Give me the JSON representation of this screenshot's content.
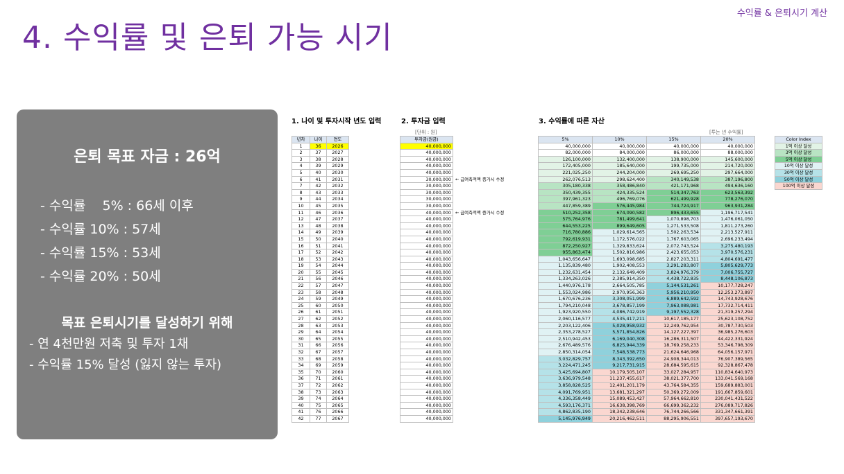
{
  "header": {
    "tag": "수익률 & 은퇴시기 계산",
    "title": "4. 수익률 및 은퇴 가능 시기"
  },
  "summary": {
    "goal": "은퇴 목표 자금 : 26억",
    "rates": [
      "- 수익률    5% : 66세 이후",
      "- 수익률 10% : 57세",
      "- 수익률 15% : 53세",
      "- 수익률 20% : 50세"
    ],
    "achieve_title": "목표 은퇴시기를 달성하기 위해",
    "steps": [
      "- 연 4천만원 저축 및 투자 1채",
      "- 수익률 15% 달성 (잃지 않는 투자)"
    ]
  },
  "sections": {
    "s1": "1. 나이 및 투자시작 년도 입력",
    "s2": "2. 투자금 입력",
    "s3": "3. 수익률에 따른 자산"
  },
  "units": {
    "invest": "[단위 : 원]",
    "returns": "[투는 년 수익률]"
  },
  "notes": [
    "← 급여축적액 증가시 수정",
    "← 급여축적액 증가시 수정"
  ],
  "colors": {
    "highlight": "#ffff00",
    "lv1": "#e2f3e6",
    "lv3": "#b8e4c3",
    "lv5": "#7fcf95",
    "lv10": "#e0f2f4",
    "lv30": "#b5e2e8",
    "lv50": "#8fd1dc",
    "lv100": "#fad7d0"
  },
  "table1": {
    "headers": [
      "년차",
      "나이",
      "연도"
    ],
    "rows": [
      [
        "1",
        "36",
        "2026"
      ],
      [
        "2",
        "37",
        "2027"
      ],
      [
        "3",
        "38",
        "2028"
      ],
      [
        "4",
        "39",
        "2029"
      ],
      [
        "5",
        "40",
        "2030"
      ],
      [
        "6",
        "41",
        "2031"
      ],
      [
        "7",
        "42",
        "2032"
      ],
      [
        "8",
        "43",
        "2033"
      ],
      [
        "9",
        "44",
        "2034"
      ],
      [
        "10",
        "45",
        "2035"
      ],
      [
        "11",
        "46",
        "2036"
      ],
      [
        "12",
        "47",
        "2037"
      ],
      [
        "13",
        "48",
        "2038"
      ],
      [
        "14",
        "49",
        "2039"
      ],
      [
        "15",
        "50",
        "2040"
      ],
      [
        "16",
        "51",
        "2041"
      ],
      [
        "17",
        "52",
        "2042"
      ],
      [
        "18",
        "53",
        "2043"
      ],
      [
        "19",
        "54",
        "2044"
      ],
      [
        "20",
        "55",
        "2045"
      ],
      [
        "21",
        "56",
        "2046"
      ],
      [
        "22",
        "57",
        "2047"
      ],
      [
        "23",
        "58",
        "2048"
      ],
      [
        "24",
        "59",
        "2049"
      ],
      [
        "25",
        "60",
        "2050"
      ],
      [
        "26",
        "61",
        "2051"
      ],
      [
        "27",
        "62",
        "2052"
      ],
      [
        "28",
        "63",
        "2053"
      ],
      [
        "29",
        "64",
        "2054"
      ],
      [
        "30",
        "65",
        "2055"
      ],
      [
        "31",
        "66",
        "2056"
      ],
      [
        "32",
        "67",
        "2057"
      ],
      [
        "33",
        "68",
        "2058"
      ],
      [
        "34",
        "69",
        "2059"
      ],
      [
        "35",
        "70",
        "2060"
      ],
      [
        "36",
        "71",
        "2061"
      ],
      [
        "37",
        "72",
        "2062"
      ],
      [
        "38",
        "73",
        "2063"
      ],
      [
        "39",
        "74",
        "2064"
      ],
      [
        "40",
        "75",
        "2065"
      ],
      [
        "41",
        "76",
        "2066"
      ],
      [
        "42",
        "77",
        "2067"
      ]
    ]
  },
  "table2": {
    "header": "투자금(원금)",
    "rows": [
      "40,000,000",
      "40,000,000",
      "40,000,000",
      "40,000,000",
      "40,000,000",
      "30,000,000",
      "30,000,000",
      "30,000,000",
      "30,000,000",
      "30,000,000",
      "40,000,000",
      "40,000,000",
      "40,000,000",
      "40,000,000",
      "40,000,000",
      "40,000,000",
      "40,000,000",
      "40,000,000",
      "40,000,000",
      "40,000,000",
      "40,000,000",
      "40,000,000",
      "40,000,000",
      "40,000,000",
      "40,000,000",
      "40,000,000",
      "40,000,000",
      "40,000,000",
      "40,000,000",
      "40,000,000",
      "40,000,000",
      "40,000,000",
      "40,000,000",
      "40,000,000",
      "40,000,000",
      "40,000,000",
      "40,000,000",
      "40,000,000",
      "40,000,000",
      "40,000,000",
      "40,000,000",
      "40,000,000"
    ]
  },
  "table3": {
    "headers": [
      "5%",
      "10%",
      "15%",
      "20%"
    ],
    "rows": [
      [
        "40,000,000",
        "40,000,000",
        "40,000,000",
        "40,000,000"
      ],
      [
        "82,000,000",
        "84,000,000",
        "86,000,000",
        "88,000,000"
      ],
      [
        "126,100,000",
        "132,400,000",
        "138,900,000",
        "145,600,000"
      ],
      [
        "172,405,000",
        "185,640,000",
        "199,735,000",
        "214,720,000"
      ],
      [
        "221,025,250",
        "244,204,000",
        "269,695,250",
        "297,664,000"
      ],
      [
        "262,076,513",
        "298,624,400",
        "340,149,538",
        "387,196,800"
      ],
      [
        "305,180,338",
        "358,486,840",
        "421,171,968",
        "494,636,160"
      ],
      [
        "350,439,355",
        "424,335,524",
        "514,347,763",
        "623,563,392"
      ],
      [
        "397,961,323",
        "496,769,076",
        "621,499,928",
        "778,276,070"
      ],
      [
        "447,859,389",
        "576,445,984",
        "744,724,917",
        "963,931,284"
      ],
      [
        "510,252,358",
        "674,090,582",
        "896,433,655",
        "1,196,717,541"
      ],
      [
        "575,764,976",
        "781,499,641",
        "1,070,898,703",
        "1,476,061,050"
      ],
      [
        "644,553,225",
        "899,649,605",
        "1,271,533,508",
        "1,811,273,260"
      ],
      [
        "716,780,886",
        "1,029,614,565",
        "1,502,263,534",
        "2,213,527,911"
      ],
      [
        "792,619,931",
        "1,172,576,022",
        "1,767,603,065",
        "2,696,233,494"
      ],
      [
        "872,250,927",
        "1,329,833,624",
        "2,072,743,524",
        "3,275,480,193"
      ],
      [
        "955,863,474",
        "1,502,816,986",
        "2,423,655,053",
        "3,970,576,231"
      ],
      [
        "1,043,656,647",
        "1,693,098,685",
        "2,827,203,311",
        "4,804,691,477"
      ],
      [
        "1,135,839,480",
        "1,902,408,553",
        "3,291,283,807",
        "5,805,629,773"
      ],
      [
        "1,232,631,454",
        "2,132,649,409",
        "3,824,976,379",
        "7,006,755,727"
      ],
      [
        "1,334,263,026",
        "2,385,914,350",
        "4,438,722,835",
        "8,448,106,873"
      ],
      [
        "1,440,976,178",
        "2,664,505,785",
        "5,144,531,261",
        "10,177,728,247"
      ],
      [
        "1,553,024,986",
        "2,970,956,363",
        "5,956,210,950",
        "12,253,273,897"
      ],
      [
        "1,670,676,236",
        "3,308,051,999",
        "6,889,642,592",
        "14,743,928,676"
      ],
      [
        "1,794,210,048",
        "3,678,857,199",
        "7,963,088,981",
        "17,732,714,411"
      ],
      [
        "1,923,920,550",
        "4,086,742,919",
        "9,197,552,328",
        "21,319,257,294"
      ],
      [
        "2,060,116,577",
        "4,535,417,211",
        "10,617,185,177",
        "25,623,108,752"
      ],
      [
        "2,203,122,406",
        "5,028,958,932",
        "12,249,762,954",
        "30,787,730,503"
      ],
      [
        "2,353,278,527",
        "5,571,854,826",
        "14,127,227,397",
        "36,985,276,603"
      ],
      [
        "2,510,942,453",
        "6,169,040,308",
        "16,286,311,507",
        "44,422,331,924"
      ],
      [
        "2,676,489,576",
        "6,825,944,339",
        "18,769,258,233",
        "53,346,798,309"
      ],
      [
        "2,850,314,054",
        "7,548,538,773",
        "21,624,646,968",
        "64,056,157,971"
      ],
      [
        "3,032,829,757",
        "8,343,392,650",
        "24,908,344,013",
        "76,907,389,565"
      ],
      [
        "3,224,471,245",
        "9,217,731,915",
        "28,684,595,615",
        "92,328,867,478"
      ],
      [
        "3,425,694,807",
        "10,179,505,107",
        "33,027,284,957",
        "110,834,640,973"
      ],
      [
        "3,636,979,548",
        "11,237,455,617",
        "38,021,377,700",
        "133,041,569,168"
      ],
      [
        "3,858,828,525",
        "12,401,201,179",
        "43,764,584,355",
        "159,689,883,001"
      ],
      [
        "4,091,769,951",
        "13,681,321,297",
        "50,369,272,009",
        "191,667,859,601"
      ],
      [
        "4,336,358,449",
        "15,089,453,427",
        "57,964,662,810",
        "230,041,431,522"
      ],
      [
        "4,593,176,371",
        "16,638,398,769",
        "66,699,362,232",
        "276,089,717,826"
      ],
      [
        "4,862,835,190",
        "18,342,238,646",
        "76,744,266,566",
        "331,347,661,391"
      ],
      [
        "5,145,976,949",
        "20,216,462,511",
        "88,295,906,551",
        "397,657,193,670"
      ]
    ]
  },
  "legend": {
    "header": "Color Index",
    "items": [
      "1억 이상 달성",
      "3억 이상 달성",
      "5억 이상 달성",
      "10억 이상 달성",
      "30억 이상 달성",
      "50억 이상 달성",
      "100억 이상 달성"
    ]
  }
}
